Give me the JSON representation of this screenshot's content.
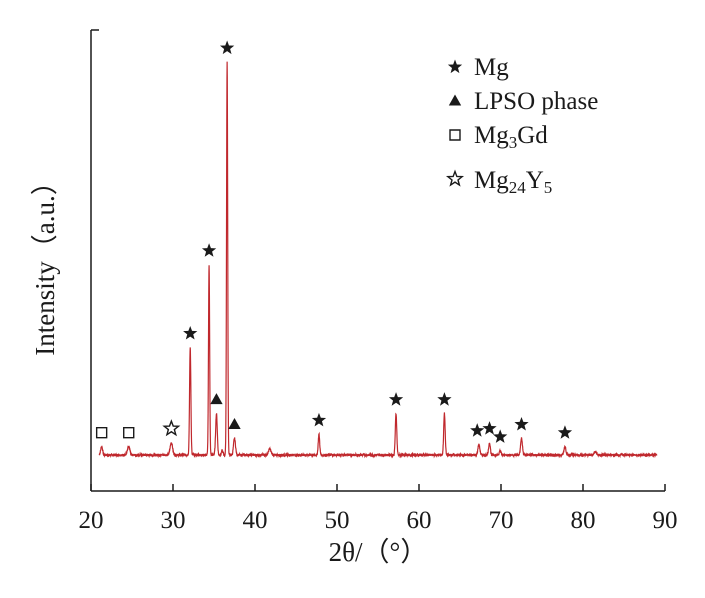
{
  "chart_data": {
    "type": "line",
    "xlabel": "2θ/（°）",
    "ylabel": "Intensity（a.u.）",
    "xlim": [
      20,
      90
    ],
    "x_ticks": [
      "20",
      "30",
      "40",
      "50",
      "60",
      "70",
      "80",
      "90"
    ],
    "grid": false,
    "line_color": "#c0282d",
    "legend_position": "top-right",
    "legend": [
      {
        "name": "Mg",
        "marker": "star-filled-icon"
      },
      {
        "name": "LPSO phase",
        "marker": "triangle-filled-icon"
      },
      {
        "name": "Mg3Gd",
        "marker": "square-open-icon"
      },
      {
        "name": "Mg24Y5",
        "marker": "star-open-icon"
      }
    ],
    "baseline": 0.05,
    "noise": 0.006,
    "peaks": [
      {
        "x": 21.3,
        "y": 0.07,
        "width": 0.12
      },
      {
        "x": 24.6,
        "y": 0.02,
        "width": 0.15
      },
      {
        "x": 29.8,
        "y": 0.03,
        "width": 0.15
      },
      {
        "x": 32.1,
        "y": 0.31,
        "width": 0.08
      },
      {
        "x": 34.4,
        "y": 0.51,
        "width": 0.07
      },
      {
        "x": 35.3,
        "y": 0.15,
        "width": 0.1
      },
      {
        "x": 36.0,
        "y": 0.06,
        "width": 0.1
      },
      {
        "x": 36.6,
        "y": 1.0,
        "width": 0.07
      },
      {
        "x": 37.5,
        "y": 0.04,
        "width": 0.12
      },
      {
        "x": 41.8,
        "y": 0.015,
        "width": 0.15
      },
      {
        "x": 47.8,
        "y": 0.1,
        "width": 0.09
      },
      {
        "x": 57.2,
        "y": 0.15,
        "width": 0.09
      },
      {
        "x": 63.1,
        "y": 0.15,
        "width": 0.09
      },
      {
        "x": 67.3,
        "y": 0.025,
        "width": 0.12
      },
      {
        "x": 68.6,
        "y": 0.08,
        "width": 0.1
      },
      {
        "x": 69.9,
        "y": 0.06,
        "width": 0.1
      },
      {
        "x": 72.5,
        "y": 0.04,
        "width": 0.11
      },
      {
        "x": 77.8,
        "y": 0.02,
        "width": 0.12
      },
      {
        "x": 81.5,
        "y": 0.008,
        "width": 0.15
      }
    ],
    "peak_markers": [
      {
        "x": 21.3,
        "phase": "Mg3Gd",
        "marker": "square-open-icon"
      },
      {
        "x": 24.6,
        "phase": "Mg3Gd",
        "marker": "square-open-icon"
      },
      {
        "x": 29.8,
        "phase": "Mg24Y5",
        "marker": "star-open-icon"
      },
      {
        "x": 32.1,
        "phase": "Mg",
        "marker": "star-filled-icon"
      },
      {
        "x": 34.4,
        "phase": "Mg",
        "marker": "star-filled-icon"
      },
      {
        "x": 35.3,
        "phase": "LPSO phase",
        "marker": "triangle-filled-icon"
      },
      {
        "x": 36.6,
        "phase": "Mg",
        "marker": "star-filled-icon"
      },
      {
        "x": 37.5,
        "phase": "LPSO phase",
        "marker": "triangle-filled-icon"
      },
      {
        "x": 47.8,
        "phase": "Mg",
        "marker": "star-filled-icon"
      },
      {
        "x": 57.2,
        "phase": "Mg",
        "marker": "star-filled-icon"
      },
      {
        "x": 63.1,
        "phase": "Mg",
        "marker": "star-filled-icon"
      },
      {
        "x": 67.1,
        "phase": "Mg",
        "marker": "star-filled-icon"
      },
      {
        "x": 68.6,
        "phase": "Mg",
        "marker": "star-filled-icon"
      },
      {
        "x": 69.9,
        "phase": "Mg",
        "marker": "star-filled-icon"
      },
      {
        "x": 72.5,
        "phase": "Mg",
        "marker": "star-filled-icon"
      },
      {
        "x": 77.8,
        "phase": "Mg",
        "marker": "star-filled-icon"
      }
    ]
  }
}
